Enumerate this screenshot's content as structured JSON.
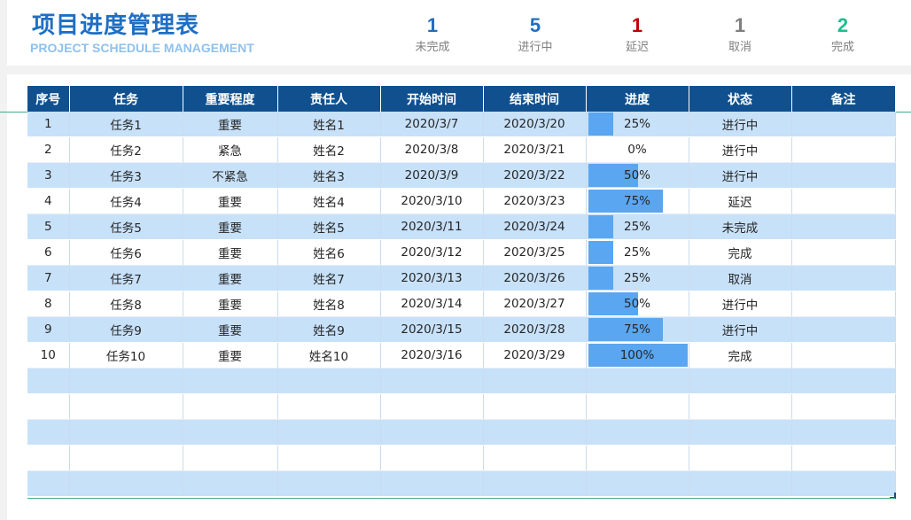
{
  "header": {
    "title": "项目进度管理表",
    "subtitle": "PROJECT SCHEDULE MANAGEMENT"
  },
  "stats": [
    {
      "value": "1",
      "label": "未完成",
      "color": "#1e6fc4"
    },
    {
      "value": "5",
      "label": "进行中",
      "color": "#1e6fc4"
    },
    {
      "value": "1",
      "label": "延迟",
      "color": "#c00000"
    },
    {
      "value": "1",
      "label": "取消",
      "color": "#7f7f7f"
    },
    {
      "value": "2",
      "label": "完成",
      "color": "#1fbf8f"
    }
  ],
  "table": {
    "headers": [
      "序号",
      "任务",
      "重要程度",
      "责任人",
      "开始时间",
      "结束时间",
      "进度",
      "状态",
      "备注"
    ],
    "rows": [
      {
        "no": "1",
        "task": "任务1",
        "priority": "重要",
        "owner": "姓名1",
        "start": "2020/3/7",
        "end": "2020/3/20",
        "progress": "25%",
        "progress_value": 0.25,
        "status": "进行中",
        "note": ""
      },
      {
        "no": "2",
        "task": "任务2",
        "priority": "紧急",
        "owner": "姓名2",
        "start": "2020/3/8",
        "end": "2020/3/21",
        "progress": "0%",
        "progress_value": 0,
        "status": "进行中",
        "note": ""
      },
      {
        "no": "3",
        "task": "任务3",
        "priority": "不紧急",
        "owner": "姓名3",
        "start": "2020/3/9",
        "end": "2020/3/22",
        "progress": "50%",
        "progress_value": 0.5,
        "status": "进行中",
        "note": ""
      },
      {
        "no": "4",
        "task": "任务4",
        "priority": "重要",
        "owner": "姓名4",
        "start": "2020/3/10",
        "end": "2020/3/23",
        "progress": "75%",
        "progress_value": 0.75,
        "status": "延迟",
        "note": ""
      },
      {
        "no": "5",
        "task": "任务5",
        "priority": "重要",
        "owner": "姓名5",
        "start": "2020/3/11",
        "end": "2020/3/24",
        "progress": "25%",
        "progress_value": 0.25,
        "status": "未完成",
        "note": ""
      },
      {
        "no": "6",
        "task": "任务6",
        "priority": "重要",
        "owner": "姓名6",
        "start": "2020/3/12",
        "end": "2020/3/25",
        "progress": "25%",
        "progress_value": 0.25,
        "status": "完成",
        "note": ""
      },
      {
        "no": "7",
        "task": "任务7",
        "priority": "重要",
        "owner": "姓名7",
        "start": "2020/3/13",
        "end": "2020/3/26",
        "progress": "25%",
        "progress_value": 0.25,
        "status": "取消",
        "note": ""
      },
      {
        "no": "8",
        "task": "任务8",
        "priority": "重要",
        "owner": "姓名8",
        "start": "2020/3/14",
        "end": "2020/3/27",
        "progress": "50%",
        "progress_value": 0.5,
        "status": "进行中",
        "note": ""
      },
      {
        "no": "9",
        "task": "任务9",
        "priority": "重要",
        "owner": "姓名9",
        "start": "2020/3/15",
        "end": "2020/3/28",
        "progress": "75%",
        "progress_value": 0.75,
        "status": "进行中",
        "note": ""
      },
      {
        "no": "10",
        "task": "任务10",
        "priority": "重要",
        "owner": "姓名10",
        "start": "2020/3/16",
        "end": "2020/3/29",
        "progress": "100%",
        "progress_value": 1.0,
        "status": "完成",
        "note": ""
      }
    ]
  },
  "colors": {
    "header_bg": "#10508f",
    "row_alt": "#c7e1f9",
    "progress_bar": "#5aa6f0",
    "title": "#1e6fc4"
  }
}
